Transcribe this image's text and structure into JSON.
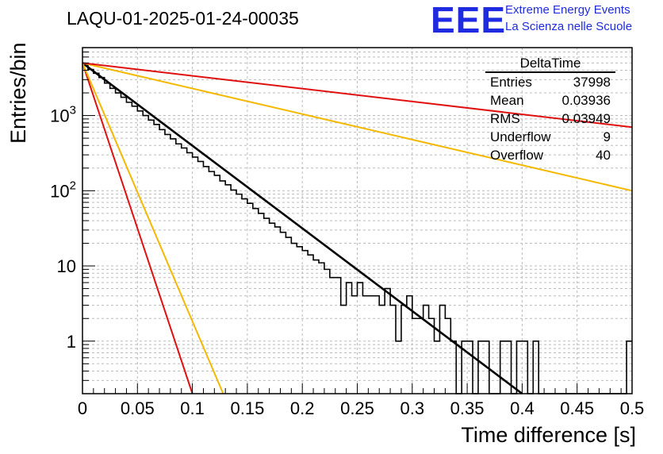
{
  "title": "LAQU-01-2025-01-24-00035",
  "logo": {
    "text": "EEE",
    "line1": "Extreme Energy Events",
    "line2": "La Scienza nelle Scuole",
    "color": "#1f2be0"
  },
  "stats_box": {
    "title": "DeltaTime",
    "rows": [
      {
        "label": "Entries",
        "value": "37998"
      },
      {
        "label": "Mean",
        "value": "0.03936"
      },
      {
        "label": "RMS",
        "value": "0.03949"
      },
      {
        "label": "Underflow",
        "value": "9"
      },
      {
        "label": "Overflow",
        "value": "40"
      }
    ]
  },
  "chart_data": {
    "type": "histogram",
    "title": "LAQU-01-2025-01-24-00035",
    "xlabel": "Time difference [s]",
    "ylabel": "Entries/bin",
    "xlim": [
      0,
      0.5
    ],
    "ylim": [
      0.2,
      8000
    ],
    "yscale": "log",
    "grid": true,
    "x_ticks": [
      "0",
      "0.05",
      "0.1",
      "0.15",
      "0.2",
      "0.25",
      "0.3",
      "0.35",
      "0.4",
      "0.45",
      "0.5"
    ],
    "y_ticks": [
      "1",
      "10",
      "10^2",
      "10^3"
    ],
    "bin_width": 0.005,
    "counts": [
      4700,
      4100,
      3650,
      3200,
      2700,
      2300,
      2000,
      1750,
      1500,
      1330,
      1150,
      1000,
      870,
      760,
      650,
      560,
      490,
      420,
      370,
      320,
      280,
      245,
      210,
      180,
      160,
      135,
      120,
      102,
      90,
      78,
      68,
      58,
      50,
      43,
      37,
      33,
      28,
      24,
      20,
      18,
      16,
      14,
      12,
      11,
      9,
      7,
      7,
      3,
      6,
      4,
      6,
      4,
      4,
      4,
      3,
      5,
      3,
      1,
      3,
      4,
      2,
      2,
      3,
      2,
      1,
      3,
      2,
      1,
      0,
      1,
      1,
      0,
      1,
      1,
      0,
      0,
      1,
      1,
      0,
      1,
      1,
      0,
      1,
      0,
      0,
      0,
      0,
      0,
      0,
      0,
      0,
      0,
      0,
      0,
      0,
      0,
      0,
      0,
      0,
      1
    ],
    "series": [
      {
        "name": "fit",
        "color": "#000000",
        "x": [
          0,
          0.4
        ],
        "y": [
          5000,
          0.2
        ]
      },
      {
        "name": "red steep",
        "color": "#e01010",
        "x": [
          0,
          0.1
        ],
        "y": [
          5000,
          0.2
        ]
      },
      {
        "name": "yellow steep",
        "color": "#f5b800",
        "x": [
          0,
          0.128
        ],
        "y": [
          5000,
          0.2
        ]
      },
      {
        "name": "yellow shallow",
        "color": "#f5b800",
        "x": [
          0,
          0.5
        ],
        "y": [
          5000,
          100
        ]
      },
      {
        "name": "red shallow",
        "color": "#e01010",
        "x": [
          0,
          0.5
        ],
        "y": [
          5000,
          700
        ]
      }
    ]
  }
}
